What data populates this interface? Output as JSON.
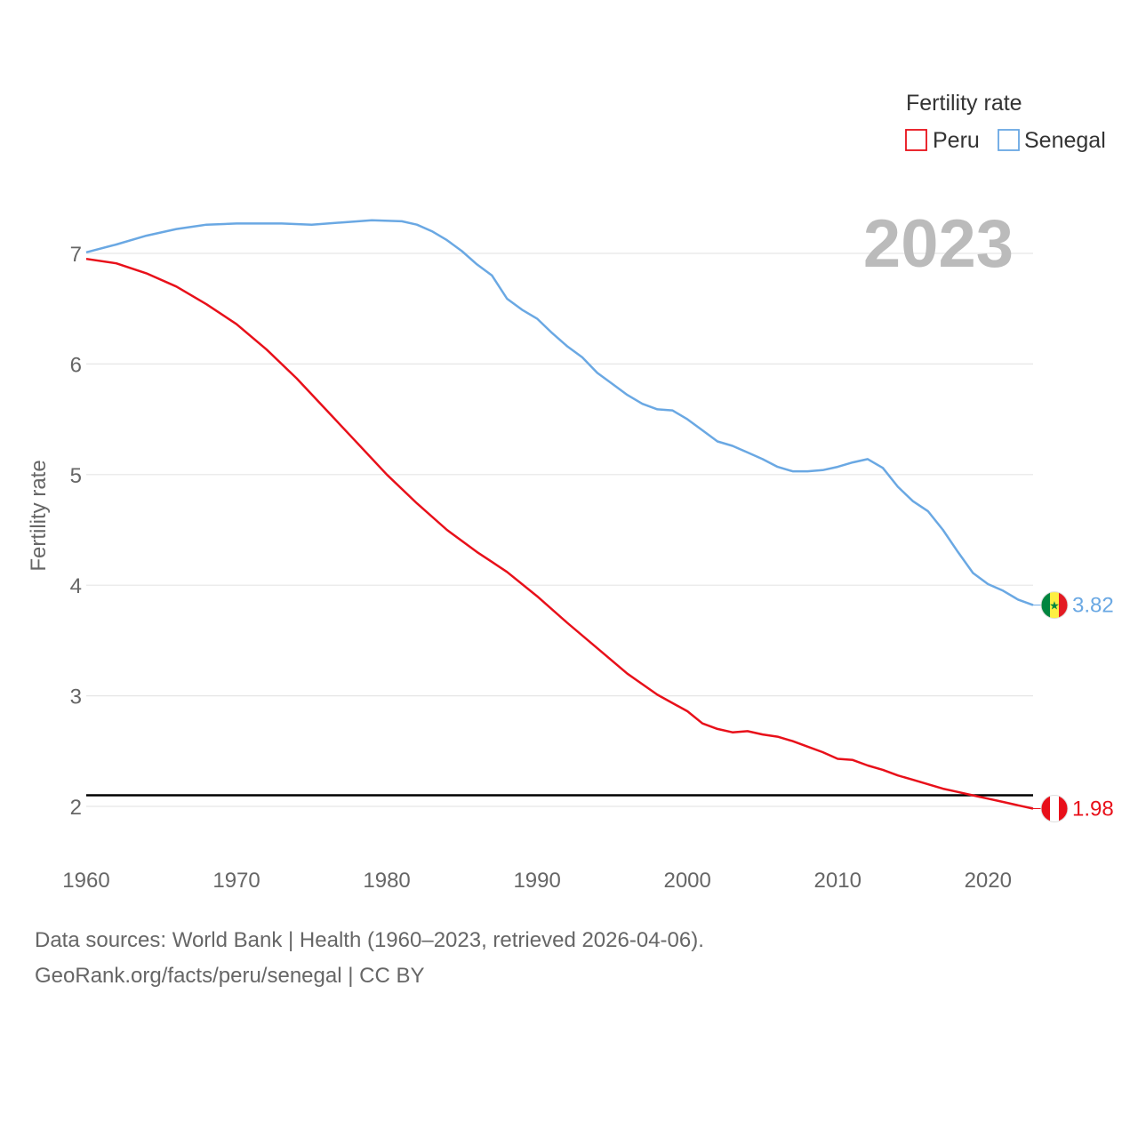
{
  "chart_data": {
    "type": "line",
    "ylabel": "Fertility rate",
    "xlabel": "",
    "xlim": [
      1960,
      2023
    ],
    "ylim": [
      1.5,
      7.5
    ],
    "yticks": [
      2,
      3,
      4,
      5,
      6,
      7
    ],
    "xticks": [
      1960,
      1970,
      1980,
      1990,
      2000,
      2010,
      2020
    ],
    "grid": true,
    "legend": {
      "title": "Fertility rate",
      "placement": "top-right"
    },
    "year_label": "2023",
    "reference_line": {
      "y": 2.1,
      "color": "#000000"
    },
    "series": [
      {
        "name": "Peru",
        "color": "#e8101a",
        "end_label": "1.98",
        "flag": "peru-flag-icon",
        "points": [
          [
            1960,
            6.95
          ],
          [
            1962,
            6.91
          ],
          [
            1964,
            6.82
          ],
          [
            1966,
            6.7
          ],
          [
            1968,
            6.54
          ],
          [
            1970,
            6.36
          ],
          [
            1972,
            6.13
          ],
          [
            1974,
            5.87
          ],
          [
            1976,
            5.58
          ],
          [
            1978,
            5.29
          ],
          [
            1980,
            5.0
          ],
          [
            1982,
            4.74
          ],
          [
            1984,
            4.5
          ],
          [
            1986,
            4.3
          ],
          [
            1987,
            4.21
          ],
          [
            1988,
            4.12
          ],
          [
            1990,
            3.9
          ],
          [
            1992,
            3.66
          ],
          [
            1994,
            3.43
          ],
          [
            1996,
            3.2
          ],
          [
            1998,
            3.01
          ],
          [
            2000,
            2.86
          ],
          [
            2001,
            2.75
          ],
          [
            2002,
            2.7
          ],
          [
            2003,
            2.67
          ],
          [
            2004,
            2.68
          ],
          [
            2005,
            2.65
          ],
          [
            2006,
            2.63
          ],
          [
            2007,
            2.59
          ],
          [
            2008,
            2.54
          ],
          [
            2009,
            2.49
          ],
          [
            2010,
            2.43
          ],
          [
            2011,
            2.42
          ],
          [
            2012,
            2.37
          ],
          [
            2013,
            2.33
          ],
          [
            2014,
            2.28
          ],
          [
            2015,
            2.24
          ],
          [
            2016,
            2.2
          ],
          [
            2017,
            2.16
          ],
          [
            2018,
            2.13
          ],
          [
            2019,
            2.1
          ],
          [
            2020,
            2.07
          ],
          [
            2021,
            2.04
          ],
          [
            2022,
            2.01
          ],
          [
            2023,
            1.98
          ]
        ]
      },
      {
        "name": "Senegal",
        "color": "#6aa8e3",
        "end_label": "3.82",
        "flag": "senegal-flag-icon",
        "points": [
          [
            1960,
            7.01
          ],
          [
            1962,
            7.08
          ],
          [
            1964,
            7.16
          ],
          [
            1966,
            7.22
          ],
          [
            1968,
            7.26
          ],
          [
            1970,
            7.27
          ],
          [
            1973,
            7.27
          ],
          [
            1975,
            7.26
          ],
          [
            1977,
            7.28
          ],
          [
            1979,
            7.3
          ],
          [
            1981,
            7.29
          ],
          [
            1982,
            7.26
          ],
          [
            1983,
            7.2
          ],
          [
            1984,
            7.12
          ],
          [
            1985,
            7.02
          ],
          [
            1986,
            6.9
          ],
          [
            1987,
            6.8
          ],
          [
            1988,
            6.59
          ],
          [
            1989,
            6.49
          ],
          [
            1990,
            6.41
          ],
          [
            1991,
            6.28
          ],
          [
            1992,
            6.16
          ],
          [
            1993,
            6.06
          ],
          [
            1994,
            5.92
          ],
          [
            1995,
            5.82
          ],
          [
            1996,
            5.72
          ],
          [
            1997,
            5.64
          ],
          [
            1998,
            5.59
          ],
          [
            1999,
            5.58
          ],
          [
            2000,
            5.5
          ],
          [
            2001,
            5.4
          ],
          [
            2002,
            5.3
          ],
          [
            2003,
            5.26
          ],
          [
            2004,
            5.2
          ],
          [
            2005,
            5.14
          ],
          [
            2006,
            5.07
          ],
          [
            2007,
            5.03
          ],
          [
            2008,
            5.03
          ],
          [
            2009,
            5.04
          ],
          [
            2010,
            5.07
          ],
          [
            2011,
            5.11
          ],
          [
            2012,
            5.14
          ],
          [
            2013,
            5.06
          ],
          [
            2014,
            4.89
          ],
          [
            2015,
            4.76
          ],
          [
            2016,
            4.67
          ],
          [
            2017,
            4.5
          ],
          [
            2018,
            4.3
          ],
          [
            2019,
            4.11
          ],
          [
            2020,
            4.01
          ],
          [
            2021,
            3.95
          ],
          [
            2022,
            3.87
          ],
          [
            2023,
            3.82
          ]
        ]
      }
    ]
  },
  "footer": {
    "sources": "Data sources: World Bank | Health (1960–2023, retrieved 2026-04-06).",
    "attribution": "GeoRank.org/facts/peru/senegal | CC BY"
  }
}
